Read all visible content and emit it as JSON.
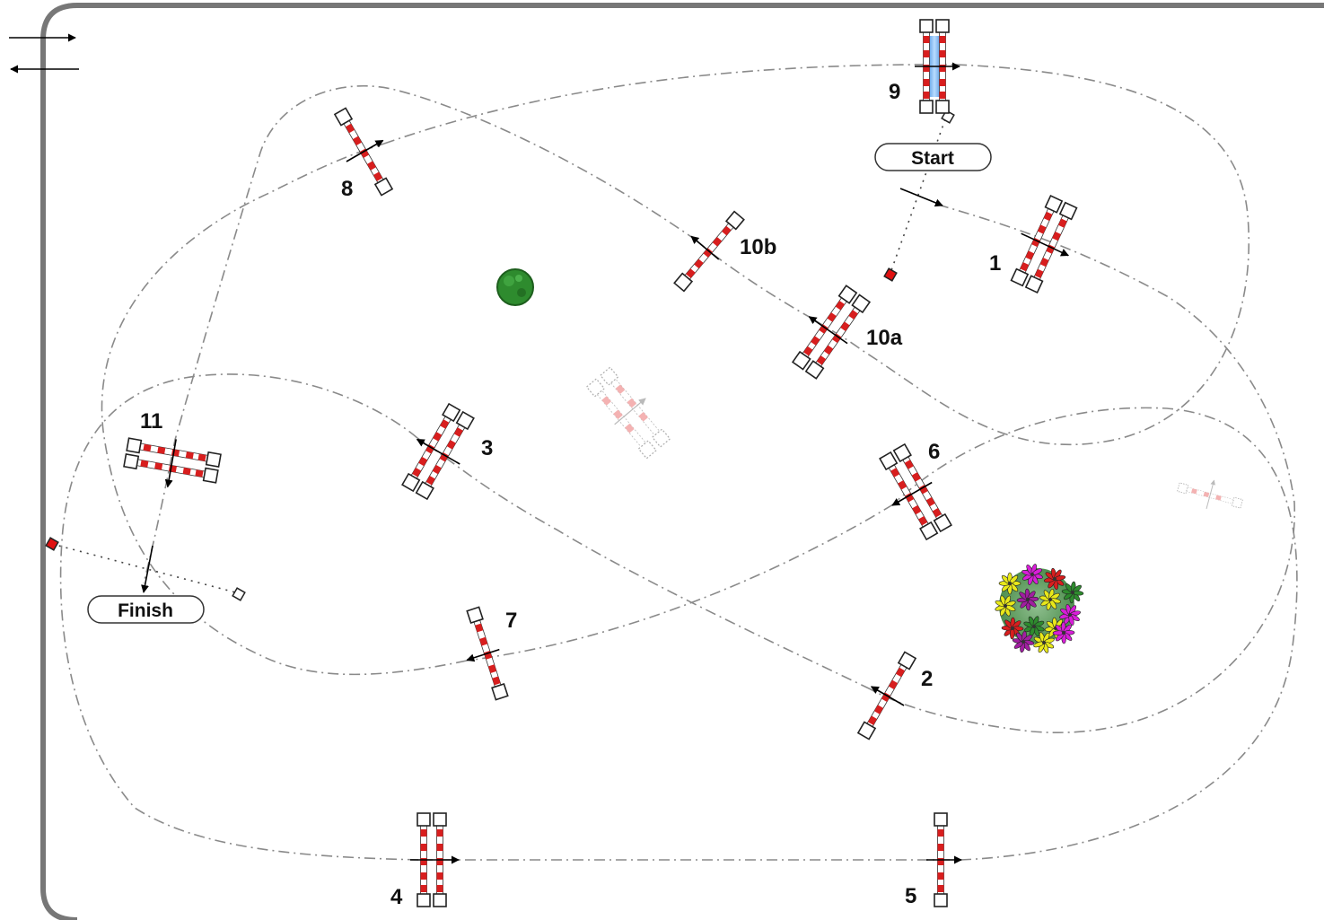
{
  "course": {
    "labels": {
      "start": "Start",
      "finish": "Finish",
      "jumps": [
        "1",
        "2",
        "3",
        "4",
        "5",
        "6",
        "7",
        "8",
        "9",
        "10a",
        "10b",
        "11"
      ]
    },
    "colors": {
      "pole_red": "#d81e1e",
      "arena_border": "#777777",
      "path_line": "#888888",
      "water": "#4a90d9",
      "tree": "#2e8b2e",
      "marker_red": "#e01010"
    },
    "icons": [
      "direction-arrows-icon",
      "tree-icon",
      "flower-bed-icon",
      "water-jump-icon"
    ]
  }
}
